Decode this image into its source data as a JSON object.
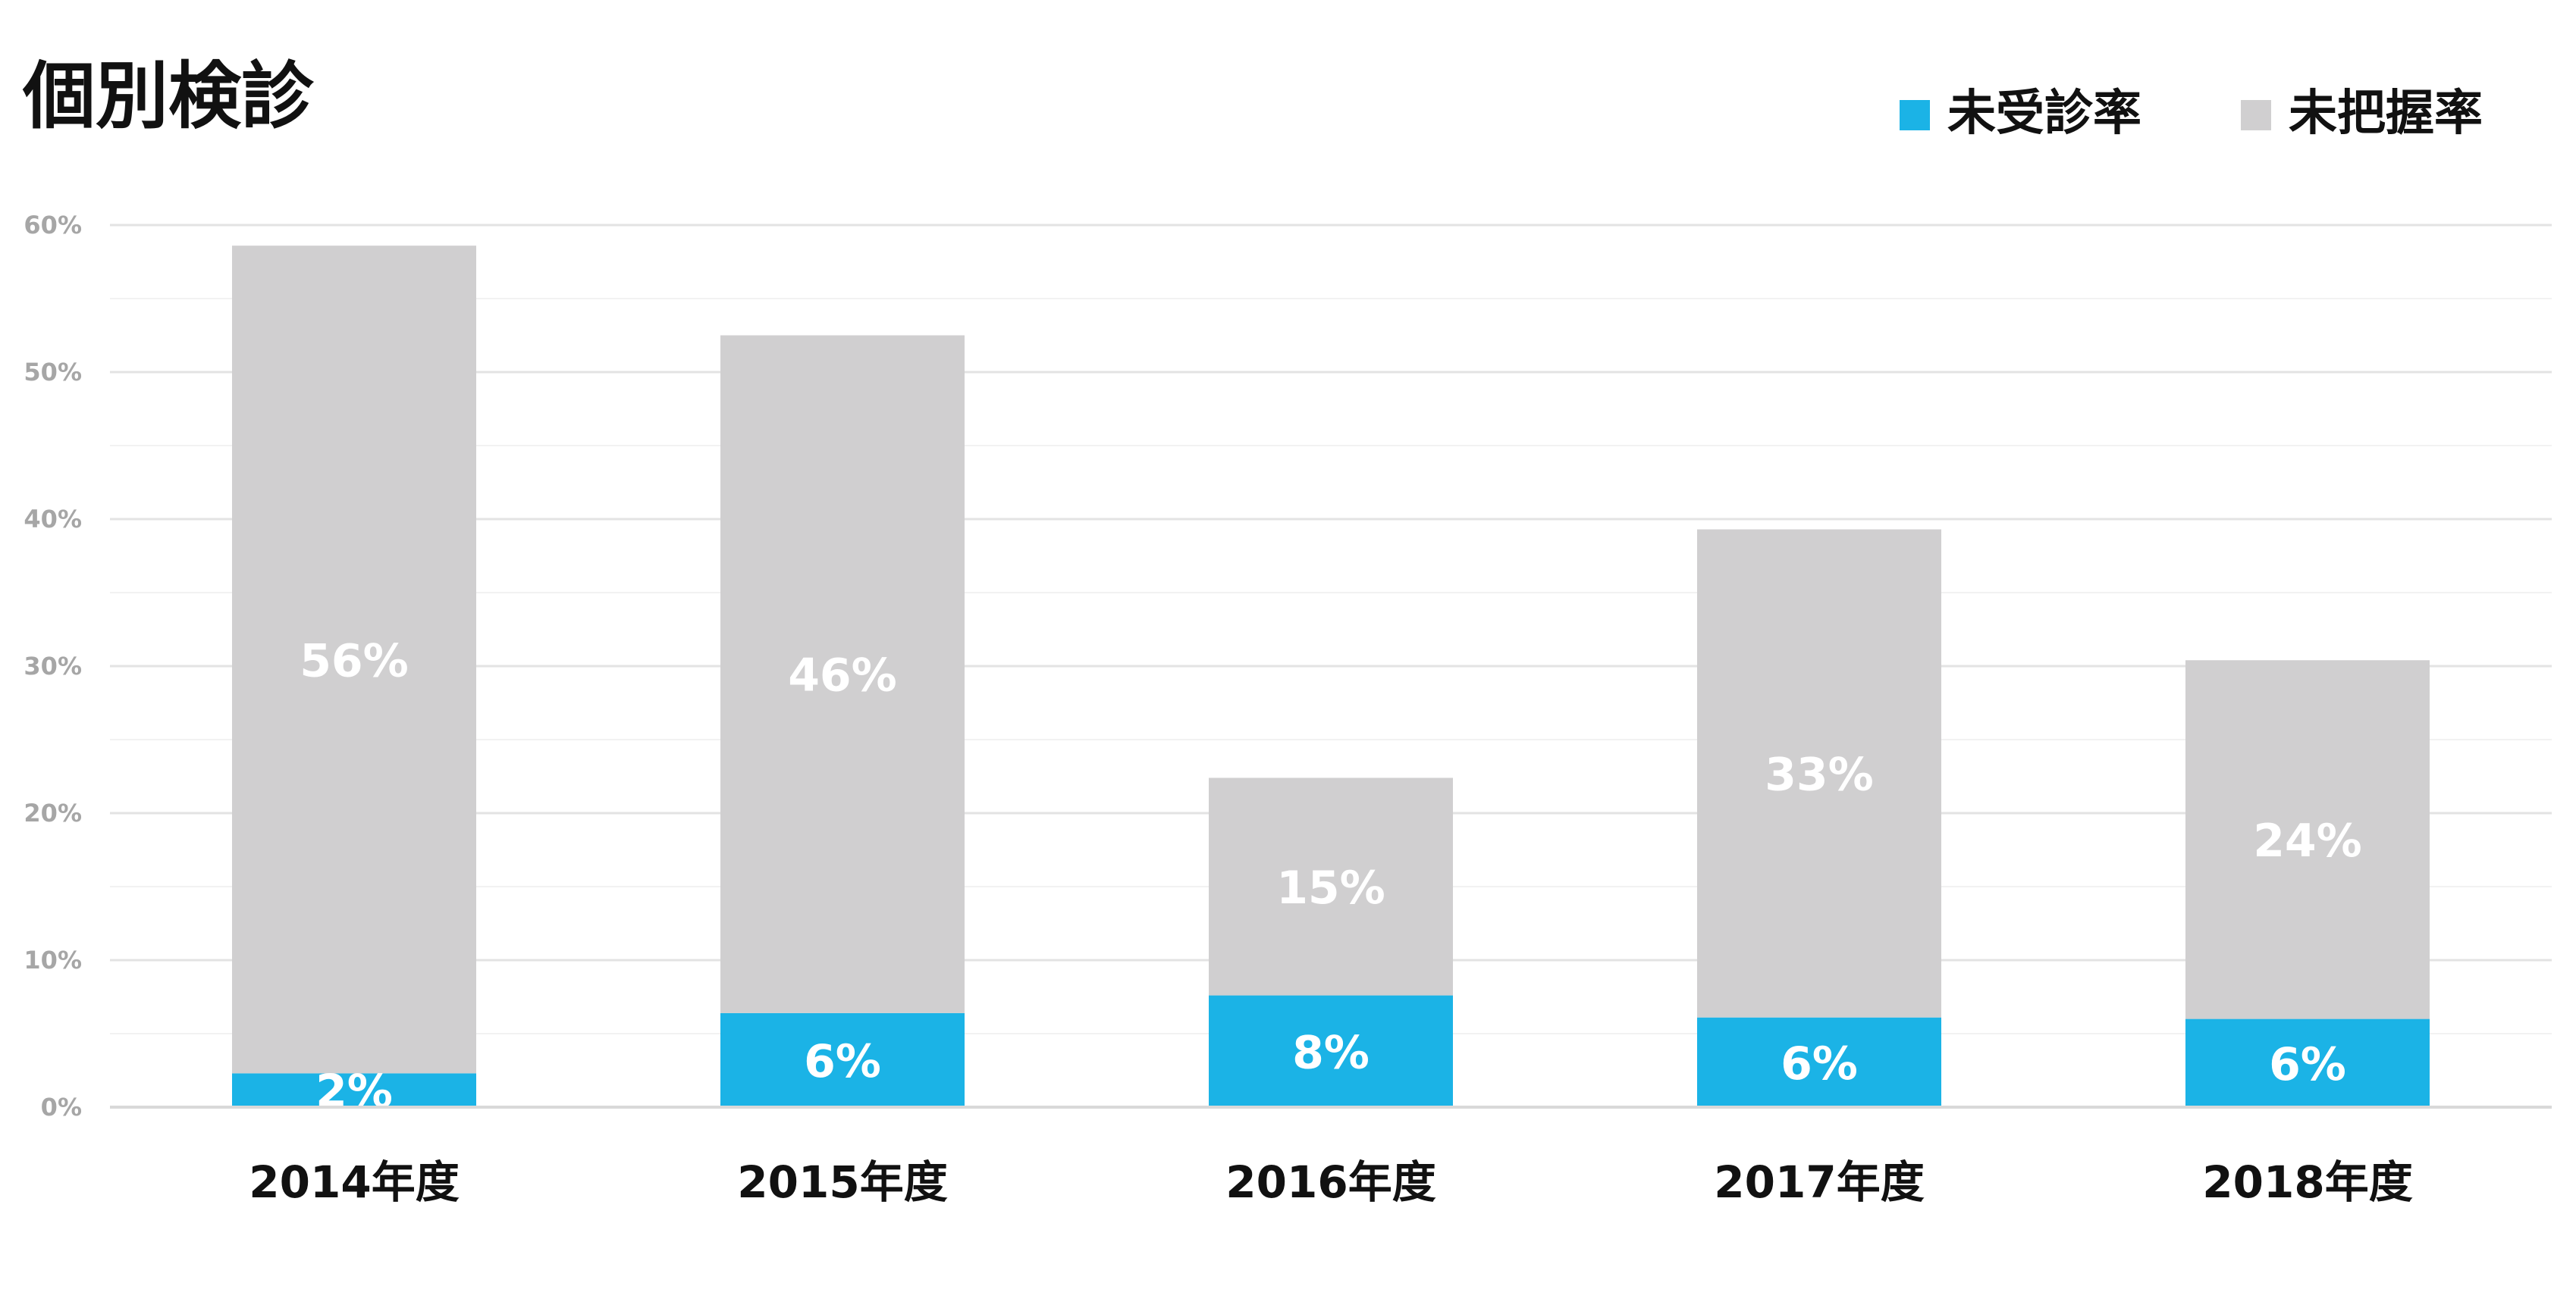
{
  "chart_data": {
    "type": "bar",
    "stacked": true,
    "title": "個別検診",
    "xlabel": "",
    "ylabel": "",
    "categories": [
      "2014年度",
      "2015年度",
      "2016年度",
      "2017年度",
      "2018年度"
    ],
    "ylim": [
      0,
      60
    ],
    "yticks": [
      "0%",
      "10%",
      "20%",
      "30%",
      "40%",
      "50%",
      "60%"
    ],
    "grid": true,
    "legend_position": "top-right",
    "series": [
      {
        "name": "未受診率",
        "color": "#1bb3e6",
        "values": [
          2.3,
          6.4,
          7.6,
          6.1,
          6.0
        ],
        "labels": [
          "2%",
          "6%",
          "8%",
          "6%",
          "6%"
        ]
      },
      {
        "name": "未把握率",
        "color": "#d0cfd0",
        "values": [
          56.3,
          46.1,
          14.8,
          33.2,
          24.4
        ],
        "labels": [
          "56%",
          "46%",
          "15%",
          "33%",
          "24%"
        ]
      }
    ]
  }
}
